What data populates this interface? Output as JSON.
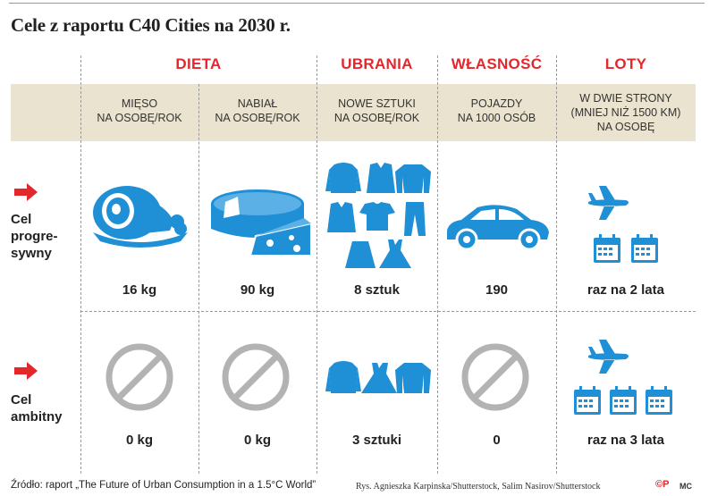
{
  "title": "Cele z raportu C40 Cities na 2030 r.",
  "categories": {
    "dieta": "DIETA",
    "ubrania": "UBRANIA",
    "wlasnosc": "WŁASNOŚĆ",
    "loty": "LOTY"
  },
  "columns": [
    {
      "line1": "MIĘSO",
      "line2": "NA OSOBĘ/ROK",
      "line3": ""
    },
    {
      "line1": "NABIAŁ",
      "line2": "NA OSOBĘ/ROK",
      "line3": ""
    },
    {
      "line1": "NOWE SZTUKI",
      "line2": "NA OSOBĘ/ROK",
      "line3": ""
    },
    {
      "line1": "POJAZDY",
      "line2": "NA 1000 OSÓB",
      "line3": ""
    },
    {
      "line1": "W DWIE STRONY",
      "line2": "(MNIEJ NIŻ 1500 KM)",
      "line3": "NA OSOBĘ"
    }
  ],
  "rows": [
    {
      "label1": "Cel",
      "label2": "progre-",
      "label3": "sywny",
      "values": [
        "16 kg",
        "90 kg",
        "8 sztuk",
        "190",
        "raz na 2 lata"
      ]
    },
    {
      "label1": "Cel",
      "label2": "ambitny",
      "label3": "",
      "values": [
        "0 kg",
        "0 kg",
        "3 sztuki",
        "0",
        "raz na 3 lata"
      ]
    }
  ],
  "footer": {
    "source": "Źródło: raport „The Future of Urban Consumption in a 1.5°C World”",
    "credits": "Rys. Agnieszka Karpinska/Shutterstock, Salim Nasirov/Shutterstock",
    "logo": "©P",
    "mc": "MC"
  },
  "colors": {
    "accent": "#e2272d",
    "icon": "#1f8fd6",
    "band": "#e9e3cf",
    "forbidden": "#b3b3b3"
  }
}
